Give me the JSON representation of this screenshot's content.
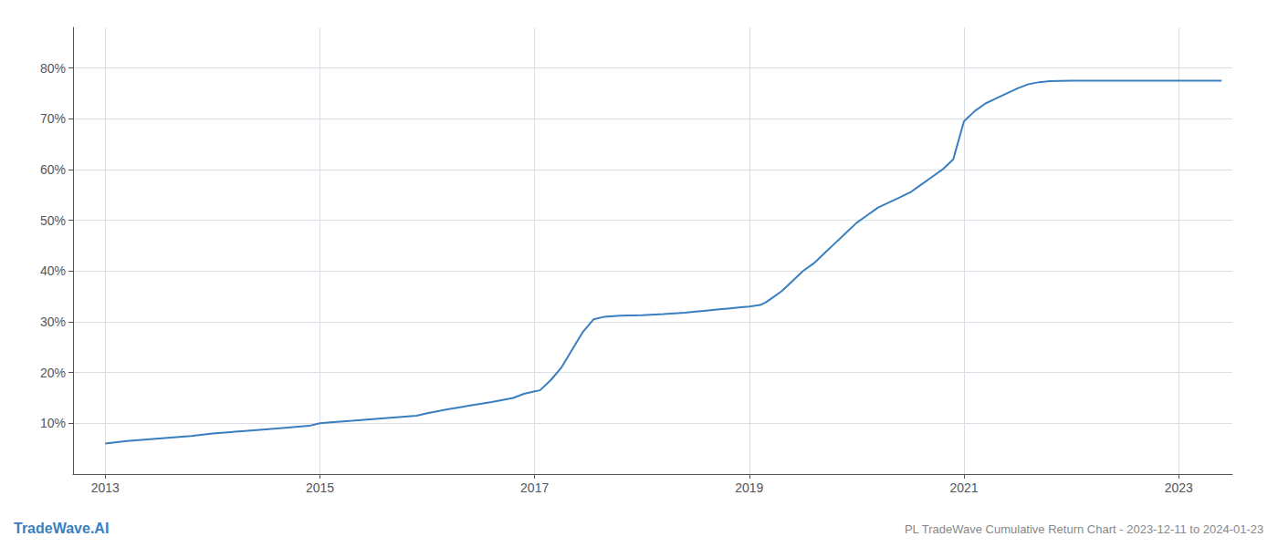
{
  "chart_data": {
    "type": "line",
    "title": "PL TradeWave Cumulative Return Chart - 2023-12-11 to 2024-01-23",
    "annotations": [
      "TradeWave.AI"
    ],
    "color": "#3a7ebf",
    "grid": true,
    "x": [
      2013.0,
      2013.2,
      2013.5,
      2013.8,
      2014.0,
      2014.3,
      2014.6,
      2014.9,
      2015.0,
      2015.1,
      2015.3,
      2015.6,
      2015.9,
      2016.0,
      2016.2,
      2016.4,
      2016.6,
      2016.8,
      2016.9,
      2017.0,
      2017.05,
      2017.15,
      2017.25,
      2017.35,
      2017.45,
      2017.55,
      2017.65,
      2017.8,
      2018.0,
      2018.2,
      2018.4,
      2018.5,
      2018.6,
      2018.7,
      2018.8,
      2018.9,
      2019.0,
      2019.1,
      2019.15,
      2019.2,
      2019.3,
      2019.4,
      2019.5,
      2019.6,
      2019.7,
      2019.8,
      2019.9,
      2020.0,
      2020.1,
      2020.2,
      2020.3,
      2020.4,
      2020.5,
      2020.6,
      2020.7,
      2020.8,
      2020.9,
      2021.0,
      2021.1,
      2021.2,
      2021.3,
      2021.4,
      2021.5,
      2021.6,
      2021.7,
      2021.8,
      2022.0,
      2022.5,
      2023.0,
      2023.4
    ],
    "values": [
      6.0,
      6.5,
      7.0,
      7.5,
      8.0,
      8.5,
      9.0,
      9.5,
      10.0,
      10.2,
      10.5,
      11.0,
      11.5,
      12.0,
      12.8,
      13.5,
      14.2,
      15.0,
      15.8,
      16.3,
      16.5,
      18.5,
      21.0,
      24.5,
      28.0,
      30.5,
      31.0,
      31.2,
      31.3,
      31.5,
      31.8,
      32.0,
      32.2,
      32.4,
      32.6,
      32.8,
      33.0,
      33.3,
      33.8,
      34.5,
      36.0,
      38.0,
      40.0,
      41.5,
      43.5,
      45.5,
      47.5,
      49.5,
      51.0,
      52.5,
      53.5,
      54.5,
      55.5,
      57.0,
      58.5,
      60.0,
      62.0,
      69.5,
      71.5,
      73.0,
      74.0,
      75.0,
      76.0,
      76.8,
      77.2,
      77.4,
      77.5,
      77.5,
      77.5,
      77.5
    ],
    "xlim": [
      2012.7,
      2023.5
    ],
    "xticks": [
      2013,
      2015,
      2017,
      2019,
      2021,
      2023
    ],
    "ylim": [
      0,
      88
    ],
    "yticks": [
      {
        "value": 10,
        "label": "10%"
      },
      {
        "value": 20,
        "label": "20%"
      },
      {
        "value": 30,
        "label": "30%"
      },
      {
        "value": 40,
        "label": "40%"
      },
      {
        "value": 50,
        "label": "50%"
      },
      {
        "value": 60,
        "label": "60%"
      },
      {
        "value": 70,
        "label": "70%"
      },
      {
        "value": 80,
        "label": "80%"
      }
    ]
  }
}
